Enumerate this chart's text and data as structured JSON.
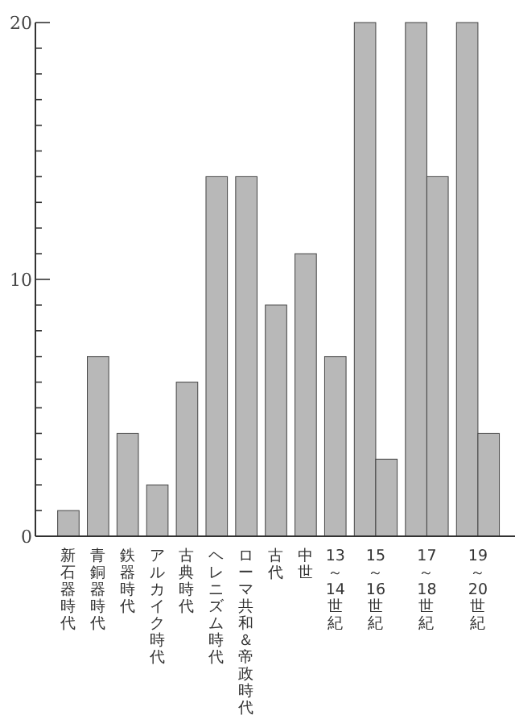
{
  "chart_data": {
    "type": "bar",
    "categories": [
      "新石器時代",
      "青銅器時代",
      "鉄器時代",
      "アルカイク時代",
      "古典時代",
      "ヘレニズム時代",
      "ローマ共和＆帝政時代",
      "古代",
      "中世",
      "13～14世紀",
      "15～16世紀",
      "17～18世紀",
      "19～20世紀"
    ],
    "series": [
      {
        "color": "#b8b8b8",
        "values": [
          1,
          7,
          4,
          2,
          6,
          14,
          14,
          9,
          11,
          7,
          20,
          20,
          20
        ]
      },
      {
        "color": "#b8b8b8",
        "values": [
          null,
          null,
          null,
          null,
          null,
          null,
          null,
          null,
          null,
          null,
          3,
          14,
          4
        ]
      }
    ],
    "ylim": [
      0,
      20
    ],
    "yticks": [
      0,
      {
        "value": 1,
        "label": null
      },
      {
        "value": 2,
        "label": null
      },
      {
        "value": 3,
        "label": null
      },
      {
        "value": 4,
        "label": null
      },
      {
        "value": 5,
        "label": null
      },
      {
        "value": 6,
        "label": null
      },
      {
        "value": 7,
        "label": null
      },
      {
        "value": 8,
        "label": null
      },
      {
        "value": 9,
        "label": null
      },
      10,
      {
        "value": 11,
        "label": null
      },
      {
        "value": 12,
        "label": null
      },
      {
        "value": 13,
        "label": null
      },
      {
        "value": 14,
        "label": null
      },
      {
        "value": 15,
        "label": null
      },
      {
        "value": 16,
        "label": null
      },
      {
        "value": 17,
        "label": null
      },
      {
        "value": 18,
        "label": null
      },
      {
        "value": 19,
        "label": null
      },
      20
    ],
    "grid": false
  }
}
